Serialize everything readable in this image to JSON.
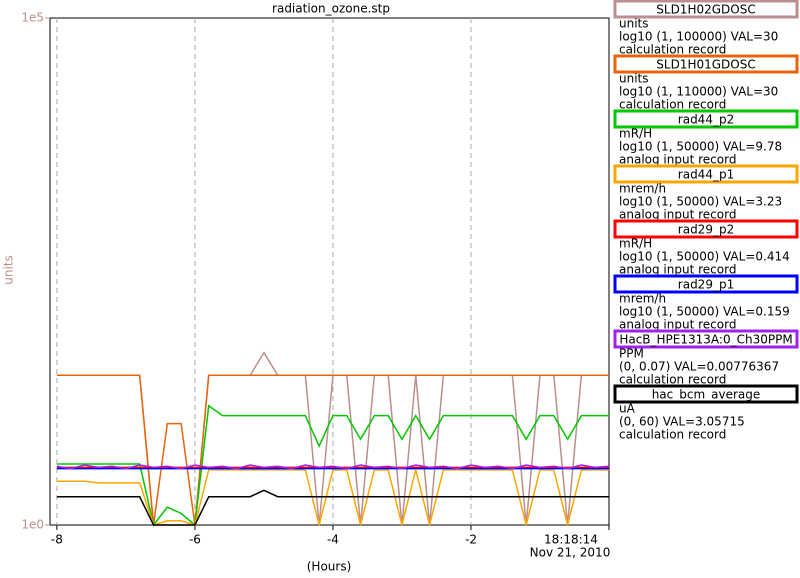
{
  "chart_data": {
    "type": "line",
    "title": "radiation_ozone.stp",
    "ylabel": "units",
    "xlabel": "(Hours)",
    "date_label": "Nov 21, 2010",
    "log_y": true,
    "grid_x": true,
    "axis_color": "#bc8f8f",
    "ylim": [
      1,
      100000
    ],
    "yticks": [
      {
        "value": 1,
        "label": "1e0"
      },
      {
        "value": 100000,
        "label": "1e5"
      }
    ],
    "xlim": [
      -8.1,
      0
    ],
    "xticks": [
      -8,
      -6,
      -4,
      -2,
      {
        "value": 0,
        "label": "18:18:14"
      }
    ],
    "x": [
      -8,
      -7.8,
      -7.6,
      -7.4,
      -7.2,
      -7,
      -6.8,
      -6.6,
      -6.4,
      -6.2,
      -6,
      -5.8,
      -5.6,
      -5.4,
      -5.2,
      -5,
      -4.8,
      -4.6,
      -4.4,
      -4.2,
      -4,
      -3.8,
      -3.6,
      -3.4,
      -3.2,
      -3,
      -2.8,
      -2.6,
      -2.4,
      -2.2,
      -2,
      -1.8,
      -1.6,
      -1.4,
      -1.2,
      -1,
      -0.8,
      -0.6,
      -0.4,
      -0.2,
      0
    ],
    "series": [
      {
        "name": "SLD1H02GDOSC",
        "color": "#bc8f8f",
        "units": "units",
        "range": "log10 (1, 100000) VAL=30",
        "record": "calculation record",
        "values": [
          30,
          30,
          30,
          30,
          30,
          30,
          30,
          1,
          1,
          1,
          1,
          30,
          30,
          30,
          30,
          50,
          30,
          30,
          30,
          1,
          30,
          30,
          1,
          30,
          30,
          1,
          30,
          1,
          30,
          30,
          30,
          30,
          30,
          30,
          1,
          30,
          30,
          1,
          30,
          30,
          30
        ]
      },
      {
        "name": "SLD1H01GDOSC",
        "color": "#e8640a",
        "units": "units",
        "range": "log10 (1, 110000) VAL=30",
        "record": "calculation record",
        "values": [
          30,
          30,
          30,
          30,
          30,
          30,
          30,
          1,
          10,
          10,
          1,
          30,
          30,
          30,
          30,
          30,
          30,
          30,
          30,
          30,
          30,
          30,
          30,
          30,
          30,
          30,
          30,
          30,
          30,
          30,
          30,
          30,
          30,
          30,
          30,
          30,
          30,
          30,
          30,
          30,
          30
        ]
      },
      {
        "name": "rad44_p2",
        "color": "#00c800",
        "units": "mR/H",
        "range": "log10 (1, 50000) VAL=9.78",
        "record": "analog input record",
        "values": [
          4,
          4,
          4,
          4,
          4,
          4,
          4,
          1,
          1.5,
          1.3,
          1,
          15,
          12,
          12,
          12,
          12,
          12,
          12,
          12,
          6,
          12,
          12,
          7,
          12,
          12,
          7,
          12,
          7,
          12,
          12,
          12,
          12,
          12,
          12,
          7,
          12,
          12,
          7,
          12,
          12,
          12
        ]
      },
      {
        "name": "rad44_p1",
        "color": "#ffa500",
        "units": "mrem/h",
        "range": "log10 (1, 50000) VAL=3.23",
        "record": "analog input record",
        "values": [
          2.7,
          2.7,
          2.7,
          2.6,
          2.6,
          2.6,
          2.6,
          1,
          1.1,
          1.1,
          1,
          3.5,
          3.5,
          3.5,
          3.5,
          3.5,
          3.5,
          3.5,
          3.5,
          1,
          3.5,
          3.5,
          1,
          3.5,
          3.5,
          1,
          3.5,
          1,
          3.5,
          3.5,
          3.5,
          3.5,
          3.5,
          3.5,
          1,
          3.5,
          3.5,
          1,
          3.5,
          3.5,
          3.5
        ]
      },
      {
        "name": "rad29_p2",
        "color": "#ff0000",
        "units": "mR/H",
        "range": "log10 (1, 50000) VAL=0.414",
        "record": "analog input record",
        "values": [
          3.7,
          3.7,
          3.7,
          3.7,
          3.7,
          3.7,
          3.7,
          3.7,
          3.7,
          3.7,
          3.7,
          3.7,
          3.7,
          3.7,
          3.7,
          3.7,
          3.7,
          3.7,
          3.7,
          3.7,
          3.7,
          3.7,
          3.7,
          3.7,
          3.7,
          3.7,
          3.7,
          3.7,
          3.7,
          3.7,
          3.7,
          3.7,
          3.7,
          3.7,
          3.7,
          3.7,
          3.7,
          3.7,
          3.7,
          3.7,
          3.7
        ]
      },
      {
        "name": "rad29_p1",
        "color": "#0000ff",
        "units": "mrem/h",
        "range": "log10 (1, 50000) VAL=0.159",
        "record": "analog input record",
        "values": [
          3.6,
          3.6,
          3.6,
          3.6,
          3.6,
          3.6,
          3.6,
          3.6,
          3.6,
          3.6,
          3.6,
          3.6,
          3.6,
          3.6,
          3.6,
          3.6,
          3.6,
          3.6,
          3.6,
          3.6,
          3.6,
          3.6,
          3.6,
          3.6,
          3.6,
          3.6,
          3.6,
          3.6,
          3.6,
          3.6,
          3.6,
          3.6,
          3.6,
          3.6,
          3.6,
          3.6,
          3.6,
          3.6,
          3.6,
          3.6,
          3.6
        ]
      },
      {
        "name": "HacB_HPE1313A:0_Ch30PPM",
        "color": "#a020f0",
        "units": "PPM",
        "range": "(0, 0.07) VAL=0.00776367",
        "record": "calculation record",
        "values": [
          3.8,
          3.6,
          3.9,
          3.7,
          3.8,
          3.6,
          3.9,
          3.7,
          3.8,
          3.6,
          3.9,
          3.7,
          3.8,
          3.6,
          3.9,
          3.7,
          3.8,
          3.6,
          3.9,
          3.7,
          3.8,
          3.6,
          3.9,
          3.7,
          3.8,
          3.6,
          3.9,
          3.7,
          3.8,
          3.6,
          3.9,
          3.7,
          3.8,
          3.6,
          3.9,
          3.7,
          3.8,
          3.6,
          3.9,
          3.7,
          3.8
        ]
      },
      {
        "name": "hac_bcm_average",
        "color": "#000000",
        "units": "uA",
        "range": "(0, 60) VAL=3.05715",
        "record": "calculation record",
        "values": [
          1.9,
          1.9,
          1.9,
          1.9,
          1.9,
          1.9,
          1.9,
          1,
          1,
          1,
          1,
          1.9,
          1.9,
          1.9,
          1.9,
          2.2,
          1.9,
          1.9,
          1.9,
          1.9,
          1.9,
          1.9,
          1.9,
          1.9,
          1.9,
          1.9,
          1.9,
          1.9,
          1.9,
          1.9,
          1.9,
          1.9,
          1.9,
          1.9,
          1.9,
          1.9,
          1.9,
          1.9,
          1.9,
          1.9,
          1.9
        ]
      }
    ]
  }
}
